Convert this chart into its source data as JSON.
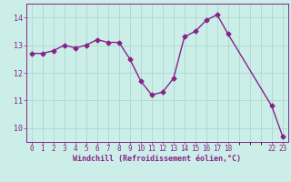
{
  "x": [
    0,
    1,
    2,
    3,
    4,
    5,
    6,
    7,
    8,
    9,
    10,
    11,
    12,
    13,
    14,
    15,
    16,
    17,
    18,
    22,
    23
  ],
  "y": [
    12.7,
    12.7,
    12.8,
    13.0,
    12.9,
    13.0,
    13.2,
    13.1,
    13.1,
    12.5,
    11.7,
    11.2,
    11.3,
    11.8,
    13.3,
    13.5,
    13.9,
    14.1,
    13.4,
    10.8,
    9.7
  ],
  "line_color": "#882288",
  "marker": "D",
  "marker_size": 2.5,
  "bg_color": "#cceee8",
  "grid_color": "#aad8d0",
  "xlabel": "Windchill (Refroidissement éolien,°C)",
  "xlabel_color": "#882288",
  "tick_color": "#882288",
  "xlim": [
    -0.5,
    23.5
  ],
  "ylim": [
    9.5,
    14.5
  ],
  "yticks": [
    10,
    11,
    12,
    13,
    14
  ],
  "xticks": [
    0,
    1,
    2,
    3,
    4,
    5,
    6,
    7,
    8,
    9,
    10,
    11,
    12,
    13,
    14,
    15,
    16,
    17,
    18,
    22,
    23
  ],
  "xtick_labels": [
    "0",
    "1",
    "2",
    "3",
    "4",
    "5",
    "6",
    "7",
    "8",
    "9",
    "10",
    "11",
    "12",
    "13",
    "14",
    "15",
    "16",
    "17",
    "18",
    "22",
    "23"
  ],
  "axis_fontsize": 6.0,
  "tick_fontsize": 5.5,
  "line_width": 1.0
}
